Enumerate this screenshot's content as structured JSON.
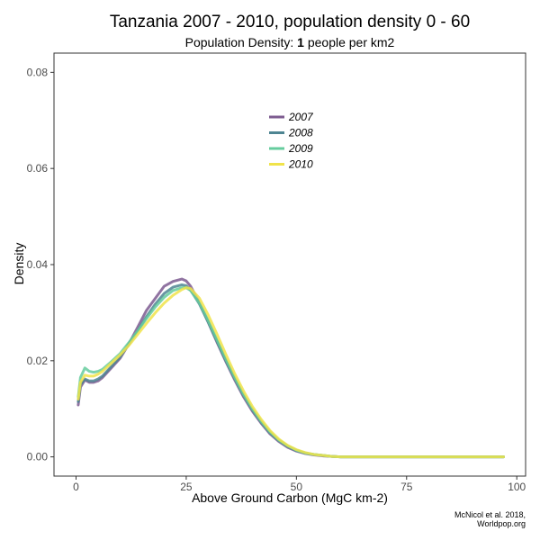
{
  "chart_data": {
    "type": "line",
    "title": "Tanzania 2007 - 2010, population density 0 - 60",
    "subtitle_prefix": "Population Density: ",
    "subtitle_value": "1",
    "subtitle_suffix": " people per km2",
    "xlabel": "Above Ground Carbon (MgC km-2)",
    "ylabel": "Density",
    "xlim": [
      -5,
      102
    ],
    "ylim": [
      -0.004,
      0.084
    ],
    "x_ticks": [
      0,
      25,
      50,
      75,
      100
    ],
    "x_tick_labels": [
      "0",
      "25",
      "50",
      "75",
      "100"
    ],
    "y_ticks": [
      0.0,
      0.02,
      0.04,
      0.06,
      0.08
    ],
    "y_tick_labels": [
      "0.00",
      "0.02",
      "0.04",
      "0.06",
      "0.08"
    ],
    "grid": false,
    "legend_position": "top-center",
    "caption_lines": [
      "McNicol et al. 2018,",
      "Worldpop.org"
    ],
    "series": [
      {
        "name": "2007",
        "color": "#7d5b90",
        "x": [
          0.5,
          1,
          2,
          3,
          4,
          5,
          6,
          8,
          10,
          12,
          14,
          16,
          18,
          20,
          22,
          24,
          25,
          26,
          28,
          30,
          32,
          34,
          36,
          38,
          40,
          42,
          44,
          46,
          48,
          50,
          52,
          54,
          56,
          58,
          60,
          65,
          70,
          75,
          80,
          85,
          90,
          95,
          97
        ],
        "y": [
          0.0108,
          0.0145,
          0.016,
          0.0155,
          0.0155,
          0.0158,
          0.0165,
          0.0185,
          0.0205,
          0.0235,
          0.027,
          0.0305,
          0.033,
          0.0355,
          0.0365,
          0.037,
          0.0366,
          0.0355,
          0.032,
          0.028,
          0.0238,
          0.0198,
          0.016,
          0.0125,
          0.0095,
          0.007,
          0.0048,
          0.0032,
          0.002,
          0.0012,
          0.0007,
          0.0004,
          0.0002,
          0.0001,
          0.0,
          0.0,
          0.0,
          0.0,
          0.0,
          0.0,
          0.0,
          0.0,
          0.0
        ]
      },
      {
        "name": "2008",
        "color": "#4e8592",
        "x": [
          0.5,
          1,
          2,
          3,
          4,
          5,
          6,
          8,
          10,
          12,
          14,
          16,
          18,
          20,
          22,
          24,
          25,
          26,
          28,
          30,
          32,
          34,
          36,
          38,
          40,
          42,
          44,
          46,
          48,
          50,
          52,
          54,
          56,
          58,
          60,
          65,
          70,
          75,
          80,
          85,
          90,
          95,
          97
        ],
        "y": [
          0.0115,
          0.015,
          0.0162,
          0.0158,
          0.0158,
          0.0162,
          0.0168,
          0.0188,
          0.0208,
          0.0235,
          0.0262,
          0.0292,
          0.0318,
          0.034,
          0.0353,
          0.0358,
          0.0356,
          0.0347,
          0.0318,
          0.028,
          0.024,
          0.02,
          0.0163,
          0.0128,
          0.0098,
          0.0072,
          0.005,
          0.0034,
          0.0022,
          0.0013,
          0.0008,
          0.0005,
          0.0003,
          0.0001,
          0.0,
          0.0,
          0.0,
          0.0,
          0.0,
          0.0,
          0.0,
          0.0,
          0.0
        ]
      },
      {
        "name": "2009",
        "color": "#66cc9e",
        "x": [
          0.5,
          1,
          2,
          3,
          4,
          5,
          6,
          8,
          10,
          12,
          14,
          16,
          18,
          20,
          22,
          24,
          25,
          26,
          28,
          30,
          32,
          34,
          36,
          38,
          40,
          42,
          44,
          46,
          48,
          50,
          52,
          54,
          56,
          58,
          60,
          65,
          70,
          75,
          80,
          85,
          90,
          95,
          97
        ],
        "y": [
          0.0125,
          0.0165,
          0.0185,
          0.0178,
          0.0176,
          0.0178,
          0.0182,
          0.0198,
          0.0215,
          0.0238,
          0.0262,
          0.0288,
          0.0312,
          0.0332,
          0.0346,
          0.0352,
          0.0352,
          0.0346,
          0.032,
          0.0283,
          0.0243,
          0.0203,
          0.0165,
          0.013,
          0.01,
          0.0074,
          0.0052,
          0.0035,
          0.0023,
          0.0014,
          0.0008,
          0.0005,
          0.0003,
          0.0001,
          0.0,
          0.0,
          0.0,
          0.0,
          0.0,
          0.0,
          0.0,
          0.0,
          0.0
        ]
      },
      {
        "name": "2010",
        "color": "#f0e34a",
        "x": [
          0.5,
          1,
          2,
          3,
          4,
          5,
          6,
          8,
          10,
          12,
          14,
          16,
          18,
          20,
          22,
          24,
          25,
          26,
          28,
          30,
          32,
          34,
          36,
          38,
          40,
          42,
          44,
          46,
          48,
          50,
          52,
          54,
          56,
          58,
          60,
          65,
          70,
          75,
          80,
          85,
          90,
          95,
          97
        ],
        "y": [
          0.012,
          0.0155,
          0.017,
          0.0168,
          0.0168,
          0.0172,
          0.0178,
          0.0195,
          0.0212,
          0.0232,
          0.0255,
          0.0278,
          0.03,
          0.032,
          0.0336,
          0.0348,
          0.0352,
          0.035,
          0.033,
          0.0295,
          0.0255,
          0.0213,
          0.0173,
          0.0137,
          0.0105,
          0.0078,
          0.0055,
          0.0037,
          0.0024,
          0.0015,
          0.0009,
          0.0005,
          0.0003,
          0.0001,
          0.0,
          0.0,
          0.0,
          0.0,
          0.0,
          0.0,
          0.0,
          0.0,
          0.0
        ]
      }
    ]
  }
}
